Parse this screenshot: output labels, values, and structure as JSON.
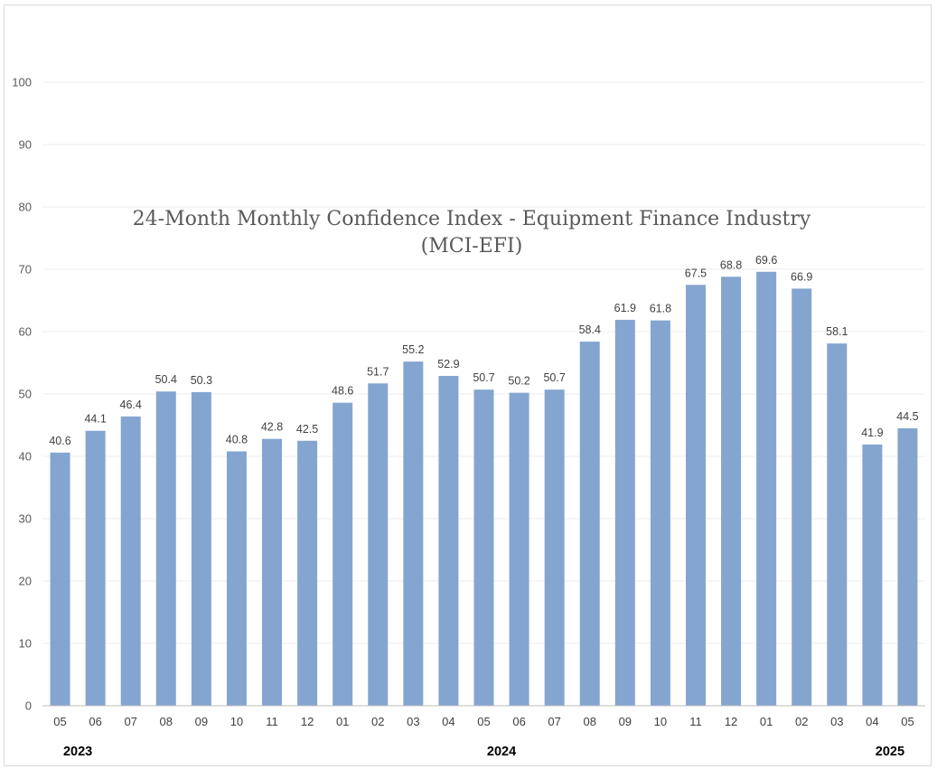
{
  "chart_data": {
    "type": "bar",
    "title_lines": [
      "24-Month Monthly Confidence Index - Equipment Finance Industry",
      "(MCI-EFI)"
    ],
    "categories": [
      "05",
      "06",
      "07",
      "08",
      "09",
      "10",
      "11",
      "12",
      "01",
      "02",
      "03",
      "04",
      "05",
      "06",
      "07",
      "08",
      "09",
      "10",
      "11",
      "12",
      "01",
      "02",
      "03",
      "04",
      "05"
    ],
    "values": [
      40.6,
      44.1,
      46.4,
      50.4,
      50.3,
      40.8,
      42.8,
      42.5,
      48.6,
      51.7,
      55.2,
      52.9,
      50.7,
      50.2,
      50.7,
      58.4,
      61.9,
      61.8,
      67.5,
      68.8,
      69.6,
      66.9,
      58.1,
      41.9,
      44.5
    ],
    "year_groups": [
      {
        "label": "2023",
        "start": 0,
        "end": 1
      },
      {
        "label": "2024",
        "start": 2,
        "end": 23
      },
      {
        "label": "2025",
        "start": 23,
        "end": 24
      }
    ],
    "yticks": [
      0,
      10,
      20,
      30,
      40,
      50,
      60,
      70,
      80,
      90,
      100
    ],
    "ylim": [
      0,
      100
    ],
    "grid": true,
    "bar_color": "#84a5d0",
    "xlabel": "",
    "ylabel": ""
  }
}
